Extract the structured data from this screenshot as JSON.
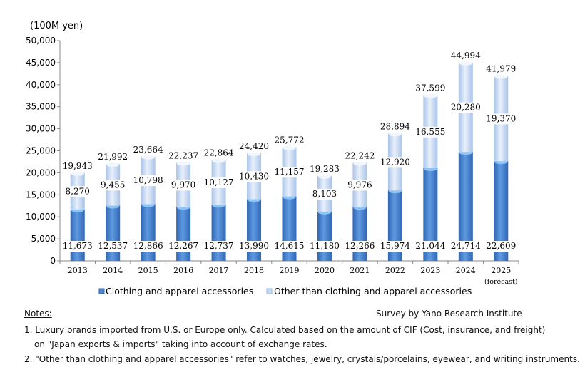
{
  "chart_data": {
    "type": "bar",
    "stacked": true,
    "ylabel": "(100M yen)",
    "ylim": [
      0,
      50000
    ],
    "yticks": [
      "0",
      "5,000",
      "10,000",
      "15,000",
      "20,000",
      "25,000",
      "30,000",
      "35,000",
      "40,000",
      "45,000",
      "50,000"
    ],
    "categories": [
      "2013",
      "2014",
      "2015",
      "2016",
      "2017",
      "2018",
      "2019",
      "2020",
      "2021",
      "2022",
      "2023",
      "2024",
      "2025"
    ],
    "category_sublabels": {
      "2025": "(forecast)"
    },
    "series": [
      {
        "name": "Clothing and apparel accessories",
        "color": "#4a86d4",
        "values": [
          11673,
          12537,
          12866,
          12267,
          12737,
          13990,
          14615,
          11180,
          12266,
          15974,
          21044,
          24714,
          22609
        ],
        "labels": [
          "11,673",
          "12,537",
          "12,866",
          "12,267",
          "12,737",
          "13,990",
          "14,615",
          "11,180",
          "12,266",
          "15,974",
          "21,044",
          "24,714",
          "22,609"
        ]
      },
      {
        "name": "Other than clothing and apparel accessories",
        "color": "#c9dcf5",
        "values": [
          8270,
          9455,
          10798,
          9970,
          10127,
          10430,
          11157,
          8103,
          9976,
          12920,
          16555,
          20280,
          19370
        ],
        "labels": [
          "8,270",
          "9,455",
          "10,798",
          "9,970",
          "10,127",
          "10,430",
          "11,157",
          "8,103",
          "9,976",
          "12,920",
          "16,555",
          "20,280",
          "19,370"
        ]
      }
    ],
    "totals": [
      "19,943",
      "21,992",
      "23,664",
      "22,237",
      "22,864",
      "24,420",
      "25,772",
      "19,283",
      "22,242",
      "28,894",
      "37,599",
      "44,994",
      "41,979"
    ],
    "legend": "bottom",
    "grid": false
  },
  "source": "Survey by Yano Research Institute",
  "notes": {
    "title": "Notes:",
    "lines": [
      "1. Luxury brands imported from U.S. or Europe only. Calculated based on the amount of CIF (Cost, insurance, and freight)",
      "on \"Japan exports & imports\" taking into account of exchange rates.",
      "2. \"Other than clothing and apparel accessories\" refer to watches, jewelry, crystals/porcelains, eyewear, and writing instruments."
    ]
  }
}
